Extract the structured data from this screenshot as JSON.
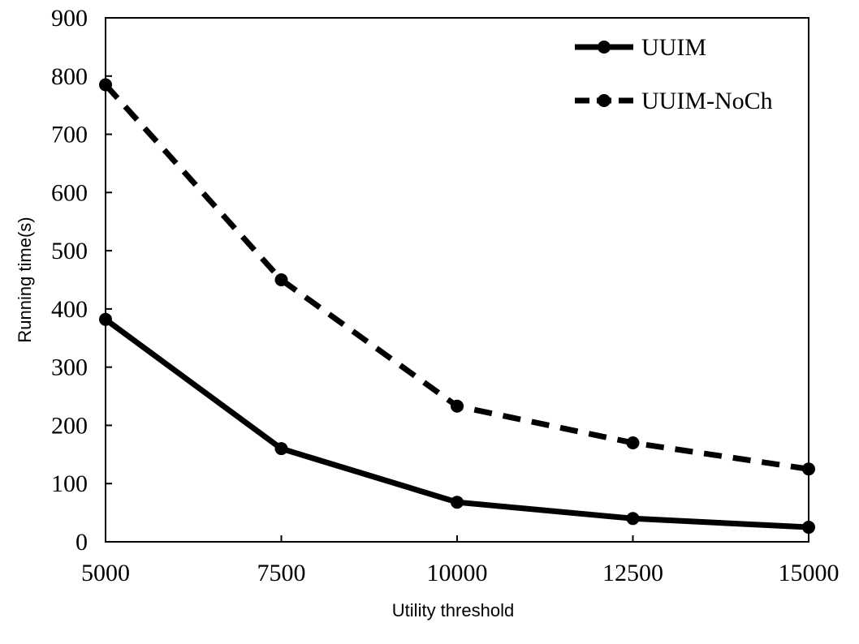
{
  "chart_data": {
    "type": "line",
    "title": "",
    "xlabel": "Utility threshold",
    "ylabel": "Running time(s)",
    "x": [
      5000,
      7500,
      10000,
      12500,
      15000
    ],
    "xlim": [
      5000,
      15000
    ],
    "ylim": [
      0,
      900
    ],
    "x_ticks": [
      "5000",
      "7500",
      "10000",
      "12500",
      "15000"
    ],
    "y_ticks": [
      "0",
      "100",
      "200",
      "300",
      "400",
      "500",
      "600",
      "700",
      "800",
      "900"
    ],
    "grid": false,
    "legend_position": "top-right",
    "series": [
      {
        "name": "UUIM",
        "values": [
          382,
          160,
          68,
          40,
          25
        ],
        "style": "solid",
        "color": "#000000"
      },
      {
        "name": "UUIM-NoCh",
        "values": [
          785,
          450,
          233,
          170,
          125
        ],
        "style": "dashed",
        "color": "#000000"
      }
    ]
  }
}
